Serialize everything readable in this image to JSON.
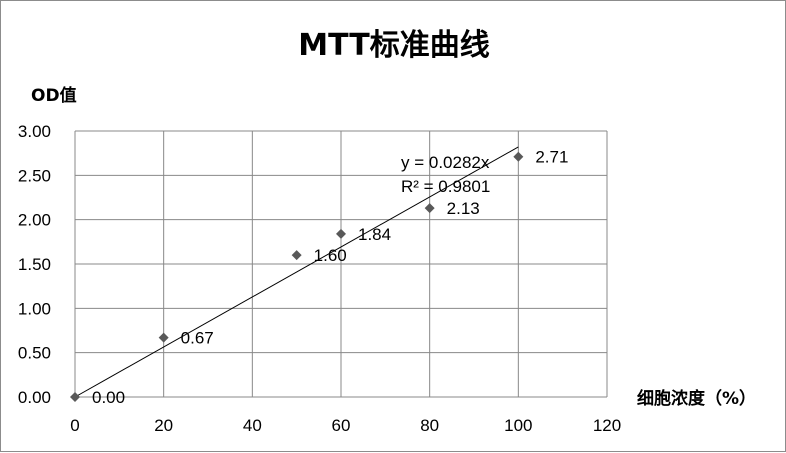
{
  "chart_data": {
    "type": "scatter",
    "title": "MTT标准曲线",
    "xlabel": "细胞浓度（%）",
    "ylabel": "OD值",
    "xlim": [
      0,
      120
    ],
    "ylim": [
      0,
      3
    ],
    "x_ticks": [
      "0",
      "20",
      "40",
      "60",
      "80",
      "100",
      "120"
    ],
    "y_ticks": [
      "0.00",
      "0.50",
      "1.00",
      "1.50",
      "2.00",
      "2.50",
      "3.00"
    ],
    "grid": true,
    "legend": "none",
    "series": [
      {
        "x": [
          0,
          20,
          50,
          60,
          80,
          100
        ],
        "y": [
          0.0,
          0.67,
          1.6,
          1.84,
          2.13,
          2.71
        ],
        "labels": [
          "0.00",
          "0.67",
          "1.60",
          "1.84",
          "2.13",
          "2.71"
        ],
        "marker": "diamond",
        "color": "#595959"
      }
    ],
    "trendline": {
      "slope": 0.0282,
      "x_range": [
        0,
        100
      ],
      "equation": "y = 0.0282x",
      "r_squared": "R² = 0.9801"
    }
  }
}
